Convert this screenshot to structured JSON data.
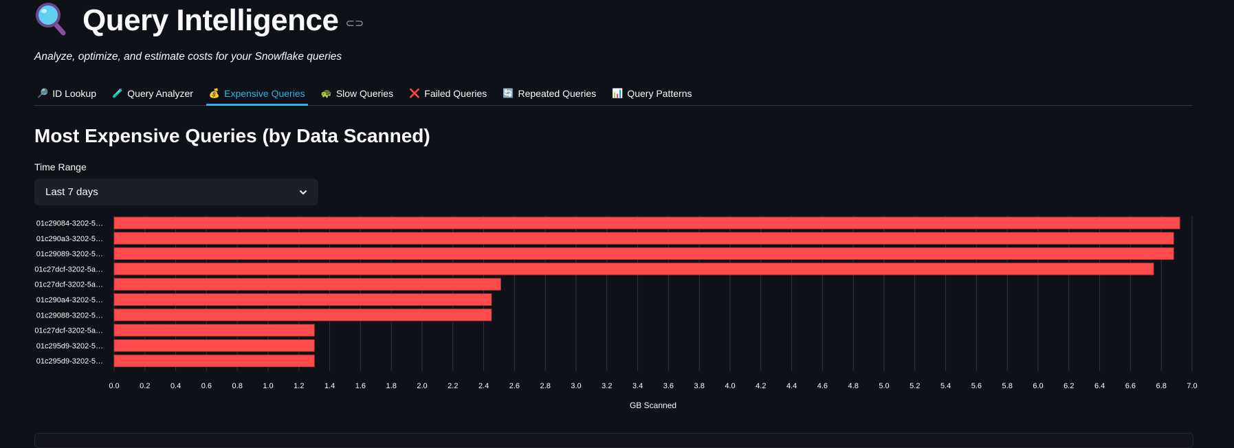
{
  "header": {
    "title": "Query Intelligence",
    "title_icon": "magnifying-glass-icon",
    "subtitle": "Analyze, optimize, and estimate costs for your Snowflake queries"
  },
  "tabs": [
    {
      "icon": "🔎",
      "label": "ID Lookup",
      "active": false
    },
    {
      "icon": "🧪",
      "label": "Query Analyzer",
      "active": false
    },
    {
      "icon": "💰",
      "label": "Expensive Queries",
      "active": true
    },
    {
      "icon": "🐢",
      "label": "Slow Queries",
      "active": false
    },
    {
      "icon": "❌",
      "label": "Failed Queries",
      "active": false
    },
    {
      "icon": "🔄",
      "label": "Repeated Queries",
      "active": false
    },
    {
      "icon": "📊",
      "label": "Query Patterns",
      "active": false
    }
  ],
  "colors": {
    "accent": "#29b5e8",
    "bar": "#ff4b4b",
    "background": "#0e1117"
  },
  "section": {
    "heading": "Most Expensive Queries (by Data Scanned)",
    "time_range_label": "Time Range",
    "time_range_value": "Last 7 days"
  },
  "chart_data": {
    "type": "bar",
    "orientation": "horizontal",
    "categories": [
      "01c29084-3202-5…",
      "01c290a3-3202-5…",
      "01c29089-3202-5…",
      "01c27dcf-3202-5a…",
      "01c27dcf-3202-5a…",
      "01c290a4-3202-5…",
      "01c29088-3202-5…",
      "01c27dcf-3202-5a…",
      "01c295d9-3202-5…",
      "01c295d9-3202-5…"
    ],
    "values": [
      6.92,
      6.88,
      6.88,
      6.75,
      2.51,
      2.45,
      2.45,
      1.3,
      1.3,
      1.3
    ],
    "xlabel": "GB Scanned",
    "ylabel": "",
    "xlim": [
      0,
      7.0
    ],
    "xticks": [
      "0.0",
      "0.2",
      "0.4",
      "0.6",
      "0.8",
      "1.0",
      "1.2",
      "1.4",
      "1.6",
      "1.8",
      "2.0",
      "2.2",
      "2.4",
      "2.6",
      "2.8",
      "3.0",
      "3.2",
      "3.4",
      "3.6",
      "3.8",
      "4.0",
      "4.2",
      "4.4",
      "4.6",
      "4.8",
      "5.0",
      "5.2",
      "5.4",
      "5.6",
      "5.8",
      "6.0",
      "6.2",
      "6.4",
      "6.6",
      "6.8",
      "7.0"
    ],
    "grid": true
  }
}
